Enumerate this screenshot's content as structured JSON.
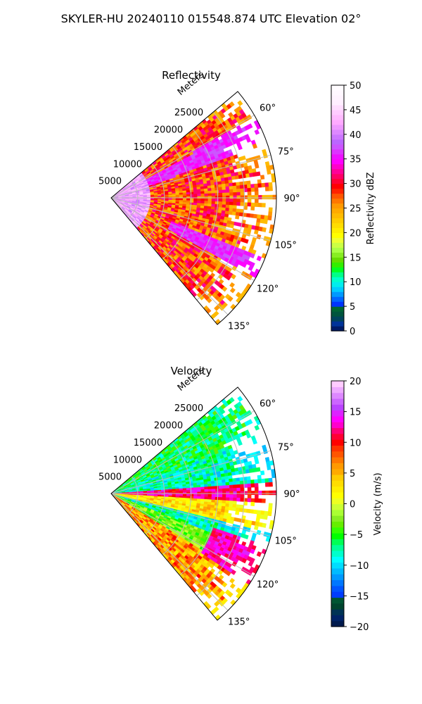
{
  "figure": {
    "title": "SKYLER-HU  20240110  015548.874 UTC Elevation 02°"
  },
  "chart_data": [
    {
      "type": "heatmap",
      "subtype": "radar-ppi-sector",
      "title": "Reflectivity",
      "range_axis_label": "Meters",
      "range_ticks": [
        5000,
        10000,
        15000,
        20000,
        25000
      ],
      "range_tick_labels": [
        "5000",
        "10000",
        "15000",
        "20000",
        "25000"
      ],
      "range_lim": [
        0,
        31000
      ],
      "azimuth_ticks_deg": [
        60,
        75,
        90,
        105,
        120,
        135
      ],
      "azimuth_tick_labels": [
        "60°",
        "75°",
        "90°",
        "105°",
        "120°",
        "135°"
      ],
      "azimuth_lim_deg": [
        50,
        140
      ],
      "grid": true,
      "colorbar": {
        "label": "Reflectivity dBZ",
        "range": [
          0,
          50
        ],
        "ticks": [
          0,
          5,
          10,
          15,
          20,
          25,
          30,
          35,
          40,
          45,
          50
        ],
        "tick_labels": [
          "0",
          "5",
          "10",
          "15",
          "20",
          "25",
          "30",
          "35",
          "40",
          "45",
          "50"
        ],
        "colormap": "NWSRef"
      },
      "field_summary": {
        "near_range_max_m": 7500,
        "near_range_value": 42,
        "typical_value": 28,
        "high_band_value": 36
      }
    },
    {
      "type": "heatmap",
      "subtype": "radar-ppi-sector",
      "title": "Velocity",
      "range_axis_label": "Meters",
      "range_ticks": [
        5000,
        10000,
        15000,
        20000,
        25000
      ],
      "range_tick_labels": [
        "5000",
        "10000",
        "15000",
        "20000",
        "25000"
      ],
      "range_lim": [
        0,
        31000
      ],
      "azimuth_ticks_deg": [
        60,
        75,
        90,
        105,
        120,
        135
      ],
      "azimuth_tick_labels": [
        "60°",
        "75°",
        "90°",
        "105°",
        "120°",
        "135°"
      ],
      "azimuth_lim_deg": [
        50,
        140
      ],
      "grid": true,
      "colorbar": {
        "label": "Velocity (m/s)",
        "range": [
          -20,
          20
        ],
        "ticks": [
          -20,
          -15,
          -10,
          -5,
          0,
          5,
          10,
          15,
          20
        ],
        "tick_labels": [
          "−20",
          "−15",
          "−10",
          "−5",
          "0",
          "5",
          "10",
          "15",
          "20"
        ],
        "colormap": "NWSVel"
      },
      "field_summary": {
        "zero_line_azimuth_deg": 98,
        "inbound_min": -12,
        "outbound_max": 15
      }
    }
  ],
  "colors": {
    "grid": "#bbbbbb",
    "axes": "#000000",
    "background": "#ffffff"
  }
}
